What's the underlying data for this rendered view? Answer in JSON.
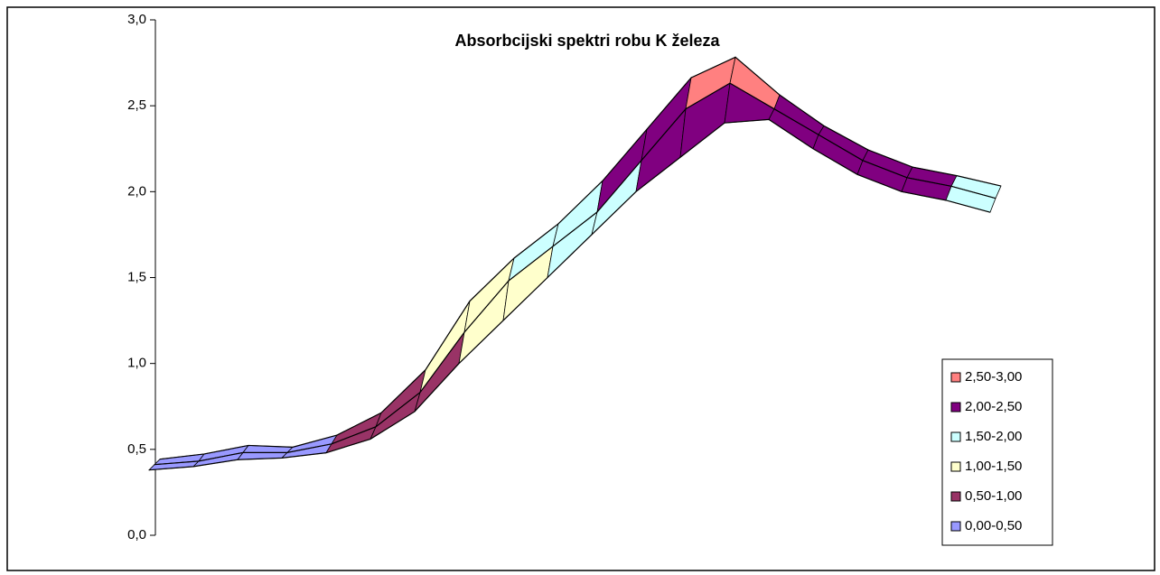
{
  "chart_data": {
    "type": "surface",
    "title": "Absorbcijski spektri robu K železa",
    "categories": [
      null,
      null,
      null,
      null,
      null,
      null,
      null,
      null,
      null,
      null,
      null,
      null,
      null,
      null,
      null,
      null,
      null,
      null,
      null,
      null
    ],
    "series": [
      {
        "values": [
          0.38,
          0.4,
          0.44,
          0.45,
          0.48,
          0.56,
          0.72,
          1.0,
          1.25,
          1.5,
          1.75,
          2.0,
          2.2,
          2.4,
          2.42,
          2.25,
          2.1,
          2.0,
          1.95,
          1.88
        ]
      },
      {
        "values": [
          0.38,
          0.4,
          0.45,
          0.45,
          0.5,
          0.6,
          0.8,
          1.15,
          1.45,
          1.65,
          1.85,
          2.15,
          2.45,
          2.6,
          2.45,
          2.3,
          2.15,
          2.05,
          2.0,
          1.93
        ]
      },
      {
        "values": [
          0.38,
          0.41,
          0.46,
          0.45,
          0.52,
          0.65,
          0.9,
          1.3,
          1.55,
          1.75,
          2.0,
          2.3,
          2.6,
          2.72,
          2.5,
          2.32,
          2.18,
          2.08,
          2.03,
          1.97
        ]
      }
    ],
    "ylim": [
      0,
      3
    ],
    "yticks": [
      {
        "value": 0,
        "label": "0,0"
      },
      {
        "value": 0.5,
        "label": "0,5"
      },
      {
        "value": 1,
        "label": "1,0"
      },
      {
        "value": 1.5,
        "label": "1,5"
      },
      {
        "value": 2,
        "label": "2,0"
      },
      {
        "value": 2.5,
        "label": "2,5"
      },
      {
        "value": 3,
        "label": "3,0"
      }
    ],
    "legend": "right",
    "bands": [
      {
        "label": "2,50-3,00",
        "from": 2.5,
        "to": 3,
        "color": "#ff8080"
      },
      {
        "label": "2,00-2,50",
        "from": 2,
        "to": 2.5,
        "color": "#800080"
      },
      {
        "label": "1,50-2,00",
        "from": 1.5,
        "to": 2,
        "color": "#ccffff"
      },
      {
        "label": "1,00-1,50",
        "from": 1,
        "to": 1.5,
        "color": "#ffffcc"
      },
      {
        "label": "0,50-1,00",
        "from": 0.5,
        "to": 1,
        "color": "#993366"
      },
      {
        "label": "0,00-0,50",
        "from": 0,
        "to": 0.5,
        "color": "#9999ff"
      }
    ]
  }
}
